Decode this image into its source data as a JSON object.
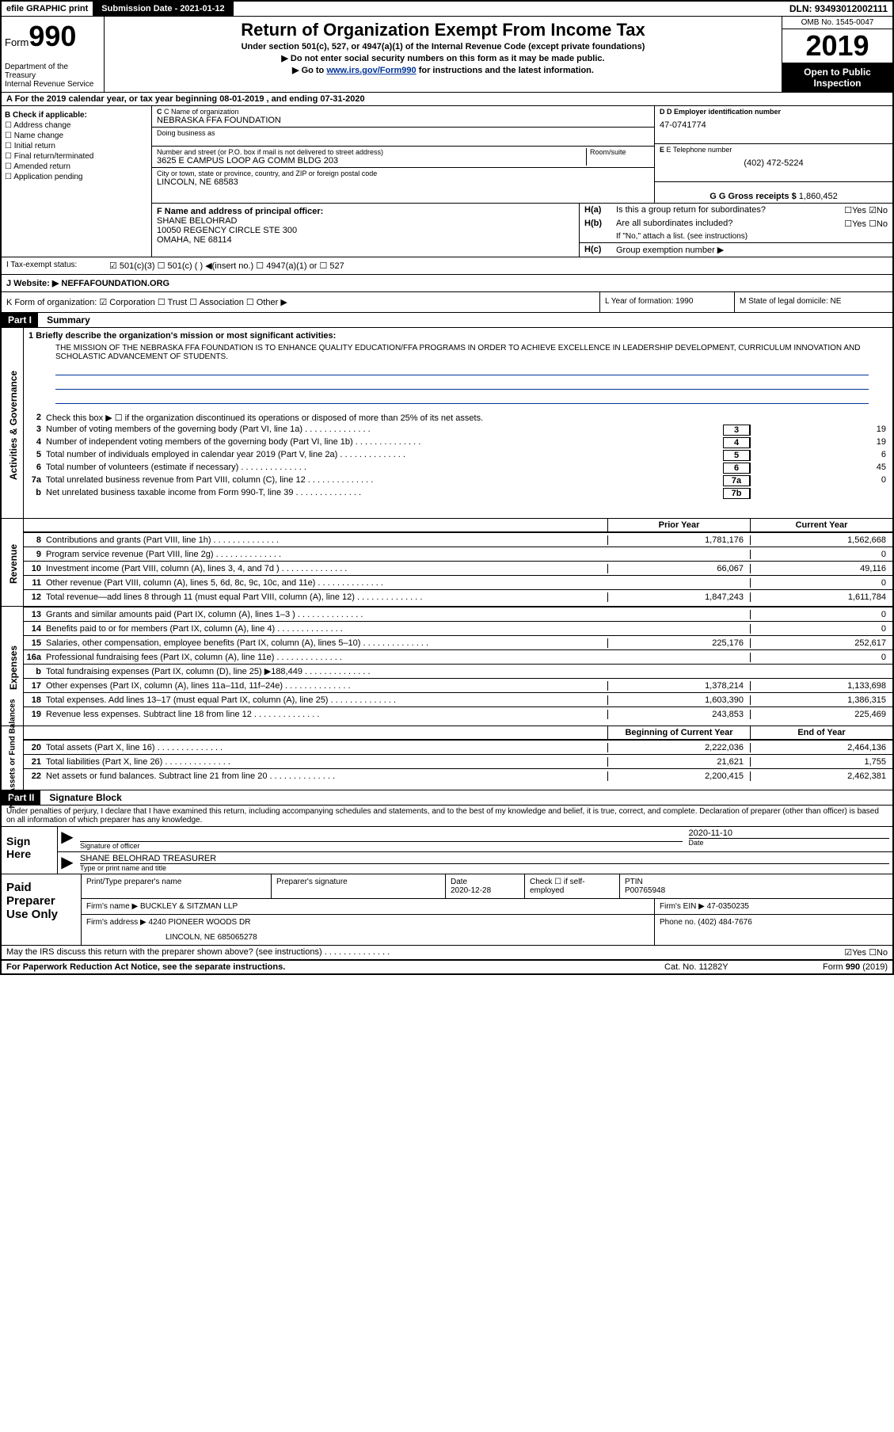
{
  "topbar": {
    "efile": "efile GRAPHIC print",
    "submission": "Submission Date - 2021-01-12",
    "dln": "DLN: 93493012002111"
  },
  "header": {
    "form_label": "Form",
    "form_num": "990",
    "dept": "Department of the Treasury\nInternal Revenue Service",
    "title": "Return of Organization Exempt From Income Tax",
    "sub1": "Under section 501(c), 527, or 4947(a)(1) of the Internal Revenue Code (except private foundations)",
    "sub2": "▶ Do not enter social security numbers on this form as it may be made public.",
    "sub3_pre": "▶ Go to ",
    "sub3_link": "www.irs.gov/Form990",
    "sub3_post": " for instructions and the latest information.",
    "omb": "OMB No. 1545-0047",
    "year": "2019",
    "open": "Open to Public Inspection"
  },
  "rowA": "A For the 2019 calendar year, or tax year beginning 08-01-2019    , and ending 07-31-2020",
  "colB": {
    "hdr": "B Check if applicable:",
    "items": [
      "☐ Address change",
      "☐ Name change",
      "☐ Initial return",
      "☐ Final return/terminated",
      "☐ Amended return",
      "☐ Application pending"
    ]
  },
  "name": {
    "c_label": "C Name of organization",
    "c_val": "NEBRASKA FFA FOUNDATION",
    "dba_label": "Doing business as",
    "addr_label": "Number and street (or P.O. box if mail is not delivered to street address)",
    "room_label": "Room/suite",
    "addr_val": "3625 E CAMPUS LOOP AG COMM BLDG 203",
    "city_label": "City or town, state or province, country, and ZIP or foreign postal code",
    "city_val": "LINCOLN, NE  68583"
  },
  "right": {
    "d_label": "D Employer identification number",
    "d_val": "47-0741774",
    "e_label": "E Telephone number",
    "e_val": "(402) 472-5224",
    "g_label": "G Gross receipts $ ",
    "g_val": "1,860,452"
  },
  "f": {
    "label": "F  Name and address of principal officer:",
    "name": "SHANE BELOHRAD",
    "addr1": "10050 REGENCY CIRCLE STE 300",
    "addr2": "OMAHA, NE  68114"
  },
  "h": {
    "a_label": "H(a)",
    "a_txt": "Is this a group return for subordinates?",
    "a_val": "☐Yes ☑No",
    "b_label": "H(b)",
    "b_txt": "Are all subordinates included?",
    "b_val": "☐Yes ☐No",
    "b_note": "If \"No,\" attach a list. (see instructions)",
    "c_label": "H(c)",
    "c_txt": "Group exemption number ▶"
  },
  "tax": {
    "label": "I    Tax-exempt status:",
    "opts": "☑ 501(c)(3)    ☐ 501(c) (  ) ◀(insert no.)    ☐ 4947(a)(1) or   ☐ 527"
  },
  "j": {
    "label": "J    Website: ▶ ",
    "val": "NEFFAFOUNDATION.ORG"
  },
  "k": {
    "label": "K Form of organization:  ☑ Corporation  ☐ Trust  ☐ Association  ☐ Other ▶",
    "l": "L Year of formation: 1990",
    "m": "M State of legal domicile: NE"
  },
  "part1": {
    "hdr": "Part I",
    "title": "Summary",
    "line1_label": "1  Briefly describe the organization's mission or most significant activities:",
    "line1_text": "THE MISSION OF THE NEBRASKA FFA FOUNDATION IS TO ENHANCE QUALITY EDUCATION/FFA PROGRAMS IN ORDER TO ACHIEVE EXCELLENCE IN LEADERSHIP DEVELOPMENT, CURRICULUM INNOVATION AND SCHOLASTIC ADVANCEMENT OF STUDENTS.",
    "line2": "Check this box ▶ ☐  if the organization discontinued its operations or disposed of more than 25% of its net assets.",
    "gov_lines": [
      {
        "n": "3",
        "d": "Number of voting members of the governing body (Part VI, line 1a)",
        "b": "3",
        "v": "19"
      },
      {
        "n": "4",
        "d": "Number of independent voting members of the governing body (Part VI, line 1b)",
        "b": "4",
        "v": "19"
      },
      {
        "n": "5",
        "d": "Total number of individuals employed in calendar year 2019 (Part V, line 2a)",
        "b": "5",
        "v": "6"
      },
      {
        "n": "6",
        "d": "Total number of volunteers (estimate if necessary)",
        "b": "6",
        "v": "45"
      },
      {
        "n": "7a",
        "d": "Total unrelated business revenue from Part VIII, column (C), line 12",
        "b": "7a",
        "v": "0"
      },
      {
        "n": "b",
        "d": "Net unrelated business taxable income from Form 990-T, line 39",
        "b": "7b",
        "v": ""
      }
    ],
    "hdr_prior": "Prior Year",
    "hdr_curr": "Current Year",
    "rev_lines": [
      {
        "n": "8",
        "d": "Contributions and grants (Part VIII, line 1h)",
        "c1": "1,781,176",
        "c2": "1,562,668"
      },
      {
        "n": "9",
        "d": "Program service revenue (Part VIII, line 2g)",
        "c1": "",
        "c2": "0"
      },
      {
        "n": "10",
        "d": "Investment income (Part VIII, column (A), lines 3, 4, and 7d )",
        "c1": "66,067",
        "c2": "49,116"
      },
      {
        "n": "11",
        "d": "Other revenue (Part VIII, column (A), lines 5, 6d, 8c, 9c, 10c, and 11e)",
        "c1": "",
        "c2": "0"
      },
      {
        "n": "12",
        "d": "Total revenue—add lines 8 through 11 (must equal Part VIII, column (A), line 12)",
        "c1": "1,847,243",
        "c2": "1,611,784"
      }
    ],
    "exp_lines": [
      {
        "n": "13",
        "d": "Grants and similar amounts paid (Part IX, column (A), lines 1–3 )",
        "c1": "",
        "c2": "0"
      },
      {
        "n": "14",
        "d": "Benefits paid to or for members (Part IX, column (A), line 4)",
        "c1": "",
        "c2": "0"
      },
      {
        "n": "15",
        "d": "Salaries, other compensation, employee benefits (Part IX, column (A), lines 5–10)",
        "c1": "225,176",
        "c2": "252,617"
      },
      {
        "n": "16a",
        "d": "Professional fundraising fees (Part IX, column (A), line 11e)",
        "c1": "",
        "c2": "0"
      },
      {
        "n": "b",
        "d": "Total fundraising expenses (Part IX, column (D), line 25) ▶188,449",
        "c1": "shade",
        "c2": "shade"
      },
      {
        "n": "17",
        "d": "Other expenses (Part IX, column (A), lines 11a–11d, 11f–24e)",
        "c1": "1,378,214",
        "c2": "1,133,698"
      },
      {
        "n": "18",
        "d": "Total expenses. Add lines 13–17 (must equal Part IX, column (A), line 25)",
        "c1": "1,603,390",
        "c2": "1,386,315"
      },
      {
        "n": "19",
        "d": "Revenue less expenses. Subtract line 18 from line 12",
        "c1": "243,853",
        "c2": "225,469"
      }
    ],
    "hdr_beg": "Beginning of Current Year",
    "hdr_end": "End of Year",
    "net_lines": [
      {
        "n": "20",
        "d": "Total assets (Part X, line 16)",
        "c1": "2,222,036",
        "c2": "2,464,136"
      },
      {
        "n": "21",
        "d": "Total liabilities (Part X, line 26)",
        "c1": "21,621",
        "c2": "1,755"
      },
      {
        "n": "22",
        "d": "Net assets or fund balances. Subtract line 21 from line 20",
        "c1": "2,200,415",
        "c2": "2,462,381"
      }
    ],
    "side_gov": "Activities & Governance",
    "side_rev": "Revenue",
    "side_exp": "Expenses",
    "side_net": "Net Assets or Fund Balances"
  },
  "part2": {
    "hdr": "Part II",
    "title": "Signature Block",
    "decl": "Under penalties of perjury, I declare that I have examined this return, including accompanying schedules and statements, and to the best of my knowledge and belief, it is true, correct, and complete. Declaration of preparer (other than officer) is based on all information of which preparer has any knowledge."
  },
  "sign": {
    "label": "Sign Here",
    "sig_officer": "Signature of officer",
    "date_val": "2020-11-10",
    "date_label": "Date",
    "name_val": "SHANE BELOHRAD TREASURER",
    "name_label": "Type or print name and title"
  },
  "prep": {
    "label": "Paid Preparer Use Only",
    "r1c1": "Print/Type preparer's name",
    "r1c2": "Preparer's signature",
    "r1c3_label": "Date",
    "r1c3_val": "2020-12-28",
    "r1c4": "Check ☐ if self-employed",
    "r1c5_label": "PTIN",
    "r1c5_val": "P00765948",
    "r2c1_label": "Firm's name     ▶ ",
    "r2c1_val": "BUCKLEY & SITZMAN LLP",
    "r2c2_label": "Firm's EIN ▶ ",
    "r2c2_val": "47-0350235",
    "r3c1_label": "Firm's address ▶ ",
    "r3c1_val": "4240 PIONEER WOODS DR",
    "r3c1_val2": "LINCOLN, NE  685065278",
    "r3c2_label": "Phone no. ",
    "r3c2_val": "(402) 484-7676"
  },
  "discuss": {
    "txt": "May the IRS discuss this return with the preparer shown above? (see instructions)",
    "val": "☑Yes  ☐No"
  },
  "footer": {
    "left": "For Paperwork Reduction Act Notice, see the separate instructions.",
    "mid": "Cat. No. 11282Y",
    "right": "Form 990 (2019)"
  }
}
